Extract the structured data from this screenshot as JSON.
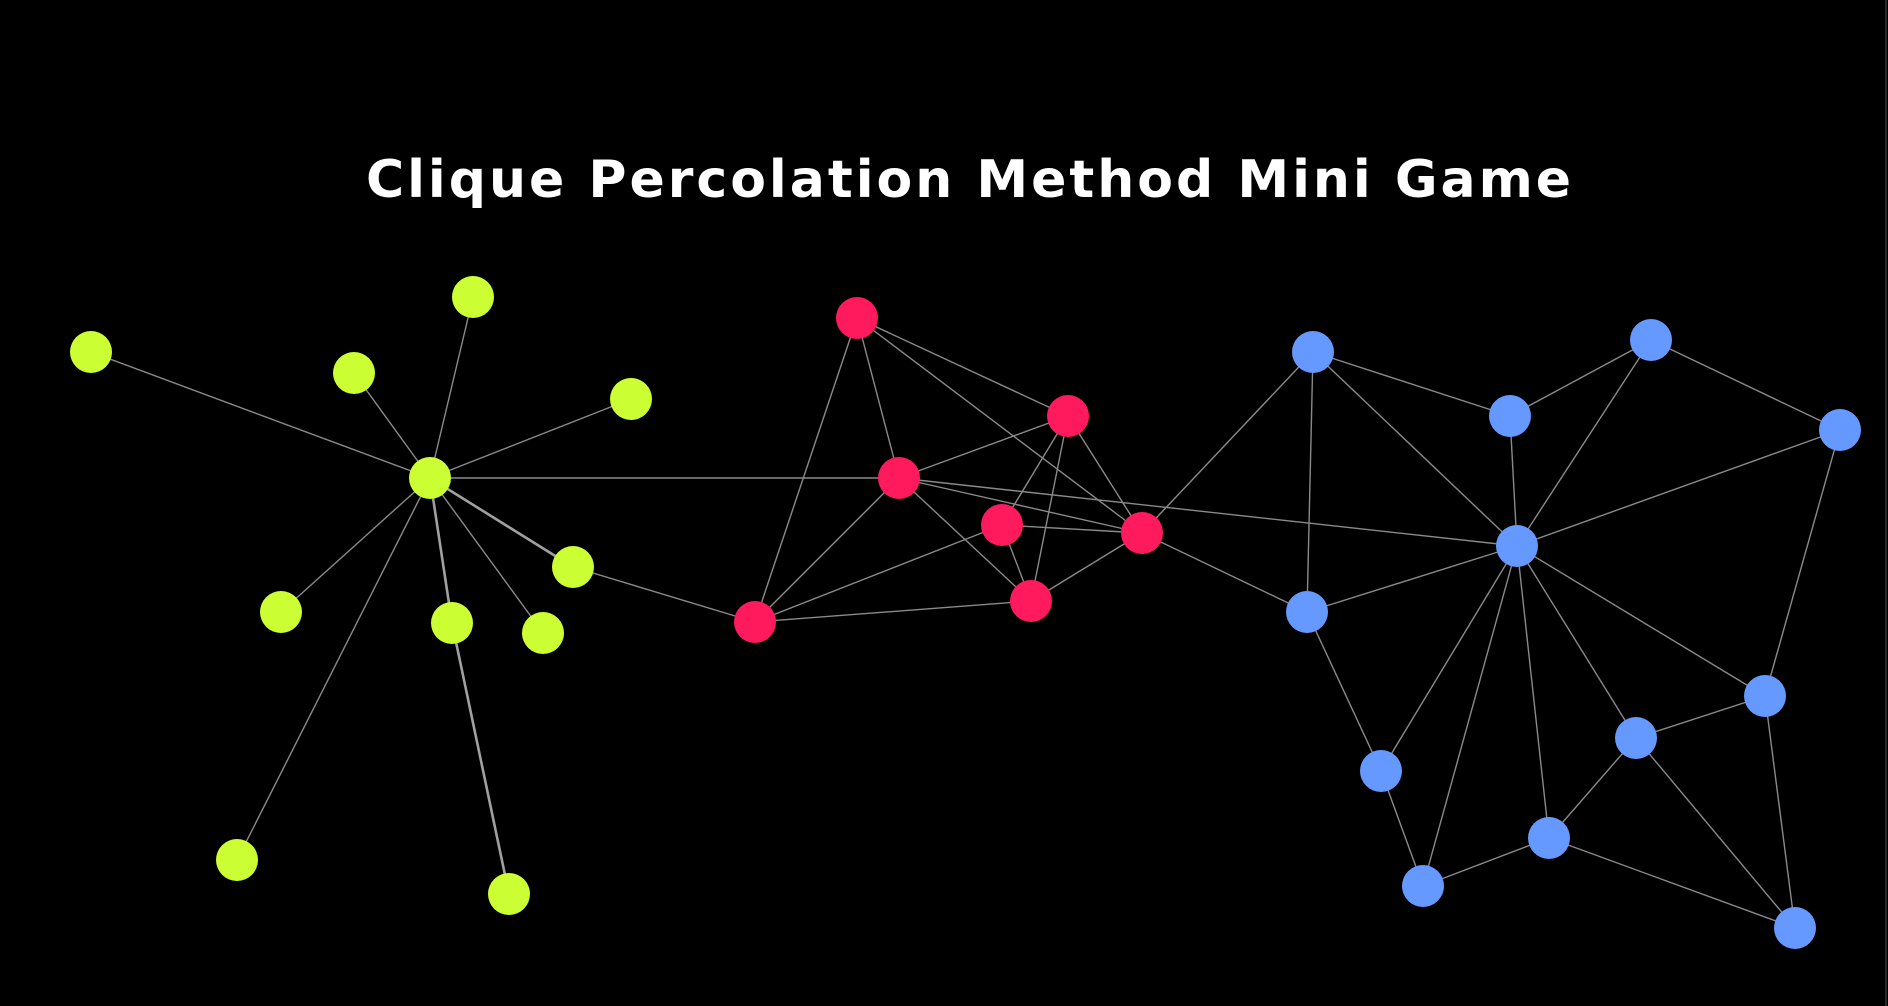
{
  "title": "Clique Percolation Method Mini Game",
  "colors": {
    "background": "#000000",
    "community_green": "#ccff33",
    "community_red": "#ff1a5e",
    "community_blue": "#6699ff",
    "edge": "#8a8a8a",
    "title": "#ffffff"
  }
}
